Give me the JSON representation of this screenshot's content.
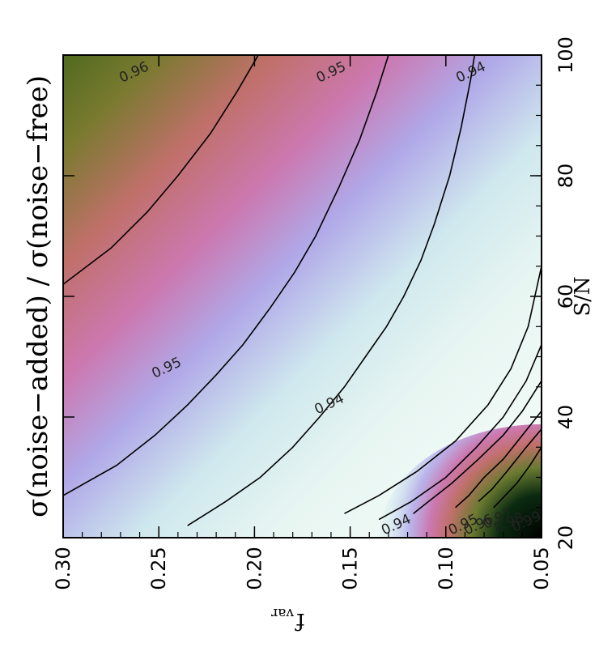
{
  "chart_data": {
    "type": "heatmap",
    "title": "σ(noise−added) / σ(noise−free)",
    "xlabel": "S/N",
    "ylabel_main": "f",
    "ylabel_sub": "var",
    "x_range": [
      20,
      100
    ],
    "y_range": [
      0.05,
      0.3
    ],
    "x_ticks": [
      "20",
      "40",
      "60",
      "80",
      "100"
    ],
    "y_ticks": [
      "0.05",
      "0.10",
      "0.15",
      "0.20",
      "0.25",
      "0.30"
    ],
    "contours": [
      {
        "level": 0.94,
        "label": "0.94",
        "points": [
          [
            22,
            0.235
          ],
          [
            26,
            0.215
          ],
          [
            30,
            0.197
          ],
          [
            35,
            0.18
          ],
          [
            40,
            0.166
          ],
          [
            45,
            0.153
          ],
          [
            50,
            0.142
          ],
          [
            55,
            0.131
          ],
          [
            60,
            0.122
          ],
          [
            66,
            0.113
          ],
          [
            72,
            0.106
          ],
          [
            80,
            0.098
          ],
          [
            88,
            0.092
          ],
          [
            96,
            0.087
          ],
          [
            100,
            0.085
          ]
        ]
      },
      {
        "level": 0.95,
        "label": "0.95",
        "points": [
          [
            27,
            0.3
          ],
          [
            32,
            0.272
          ],
          [
            37,
            0.252
          ],
          [
            42,
            0.235
          ],
          [
            47,
            0.22
          ],
          [
            52,
            0.206
          ],
          [
            58,
            0.192
          ],
          [
            64,
            0.179
          ],
          [
            70,
            0.168
          ],
          [
            78,
            0.156
          ],
          [
            86,
            0.145
          ],
          [
            94,
            0.136
          ],
          [
            100,
            0.13
          ]
        ]
      },
      {
        "level": 0.96,
        "label": "0.96",
        "points": [
          [
            62,
            0.3
          ],
          [
            68,
            0.275
          ],
          [
            74,
            0.256
          ],
          [
            80,
            0.24
          ],
          [
            87,
            0.223
          ],
          [
            94,
            0.209
          ],
          [
            100,
            0.198
          ]
        ]
      },
      {
        "level": 0.94,
        "label": "0.94",
        "points": [
          [
            65,
            0.05
          ],
          [
            55,
            0.057
          ],
          [
            48,
            0.066
          ],
          [
            42,
            0.078
          ],
          [
            36,
            0.095
          ],
          [
            31,
            0.115
          ],
          [
            27,
            0.135
          ],
          [
            24,
            0.153
          ]
        ]
      },
      {
        "level": 0.95,
        "label": "0.95",
        "points": [
          [
            52,
            0.05
          ],
          [
            46,
            0.058
          ],
          [
            40,
            0.07
          ],
          [
            35,
            0.084
          ],
          [
            30,
            0.1
          ],
          [
            26,
            0.118
          ],
          [
            23,
            0.135
          ]
        ]
      },
      {
        "level": 0.96,
        "label": "0.96",
        "points": [
          [
            46,
            0.05
          ],
          [
            41,
            0.06
          ],
          [
            37,
            0.07
          ],
          [
            33,
            0.083
          ],
          [
            29,
            0.097
          ],
          [
            26,
            0.109
          ],
          [
            24,
            0.117
          ]
        ]
      },
      {
        "level": 0.97,
        "label": "0.97",
        "points": [
          [
            41,
            0.05
          ],
          [
            37,
            0.06
          ],
          [
            33,
            0.07
          ],
          [
            30,
            0.08
          ],
          [
            27,
            0.088
          ],
          [
            25,
            0.095
          ]
        ]
      },
      {
        "level": 0.98,
        "label": "0.98",
        "points": [
          [
            38,
            0.05
          ],
          [
            35,
            0.058
          ],
          [
            31,
            0.068
          ],
          [
            28,
            0.076
          ],
          [
            26,
            0.083
          ]
        ]
      },
      {
        "level": 0.99,
        "label": "0.99",
        "points": [
          [
            35,
            0.05
          ],
          [
            32,
            0.056
          ],
          [
            29,
            0.063
          ],
          [
            27,
            0.069
          ],
          [
            25,
            0.075
          ]
        ]
      }
    ],
    "contour_labels": [
      {
        "text": "0.96",
        "x": 96.5,
        "y": 0.262
      },
      {
        "text": "0.95",
        "x": 96.5,
        "y": 0.159
      },
      {
        "text": "0.94",
        "x": 96.5,
        "y": 0.086
      },
      {
        "text": "0.95",
        "x": 47.5,
        "y": 0.245
      },
      {
        "text": "0.94",
        "x": 41.5,
        "y": 0.16
      },
      {
        "text": "0.94",
        "x": 21.5,
        "y": 0.125
      },
      {
        "text": "0.95",
        "x": 21.5,
        "y": 0.09
      },
      {
        "text": "0.96",
        "x": 21.5,
        "y": 0.082
      },
      {
        "text": "0.97",
        "x": 22.5,
        "y": 0.072
      },
      {
        "text": "0.98",
        "x": 21.8,
        "y": 0.066
      },
      {
        "text": "0.99",
        "x": 22.0,
        "y": 0.057
      }
    ],
    "colors": {
      "dark": "#4f6a1e",
      "olive": "#7a7a30",
      "salmon": "#c0706a",
      "pink": "#cc78b0",
      "lavender": "#b0a8e8",
      "pale_blue": "#cfe8ee",
      "mint": "#e8f6f2",
      "white": "#f7fcfa",
      "black": "#000000"
    }
  }
}
